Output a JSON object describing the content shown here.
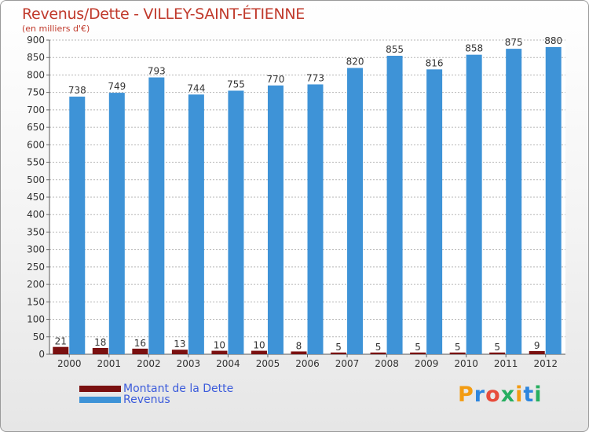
{
  "title": "Revenus/Dette - VILLEY-SAINT-ÉTIENNE",
  "subtitle": "(en milliers d'€)",
  "colors": {
    "title": "#c0392b",
    "debt": "#7a1010",
    "revenue": "#3e93d7",
    "legend_text": "#3b5bdb"
  },
  "legend": {
    "debt_label": "Montant de la Dette",
    "revenue_label": "Revenus"
  },
  "logo": {
    "text": "Proxiti"
  },
  "chart_data": {
    "type": "bar",
    "title": "Revenus/Dette - VILLEY-SAINT-ÉTIENNE",
    "ylabel": "(en milliers d'€)",
    "xlabel": "",
    "ylim": [
      0,
      900
    ],
    "ytick_step": 50,
    "grid": true,
    "legend_position": "bottom-left",
    "categories": [
      "2000",
      "2001",
      "2002",
      "2003",
      "2004",
      "2005",
      "2006",
      "2007",
      "2008",
      "2009",
      "2010",
      "2011",
      "2012"
    ],
    "series": [
      {
        "name": "Montant de la Dette",
        "values": [
          21,
          18,
          16,
          13,
          10,
          10,
          8,
          5,
          5,
          5,
          5,
          5,
          9
        ]
      },
      {
        "name": "Revenus",
        "values": [
          738,
          749,
          793,
          744,
          755,
          770,
          773,
          820,
          855,
          816,
          858,
          875,
          880
        ]
      }
    ]
  }
}
